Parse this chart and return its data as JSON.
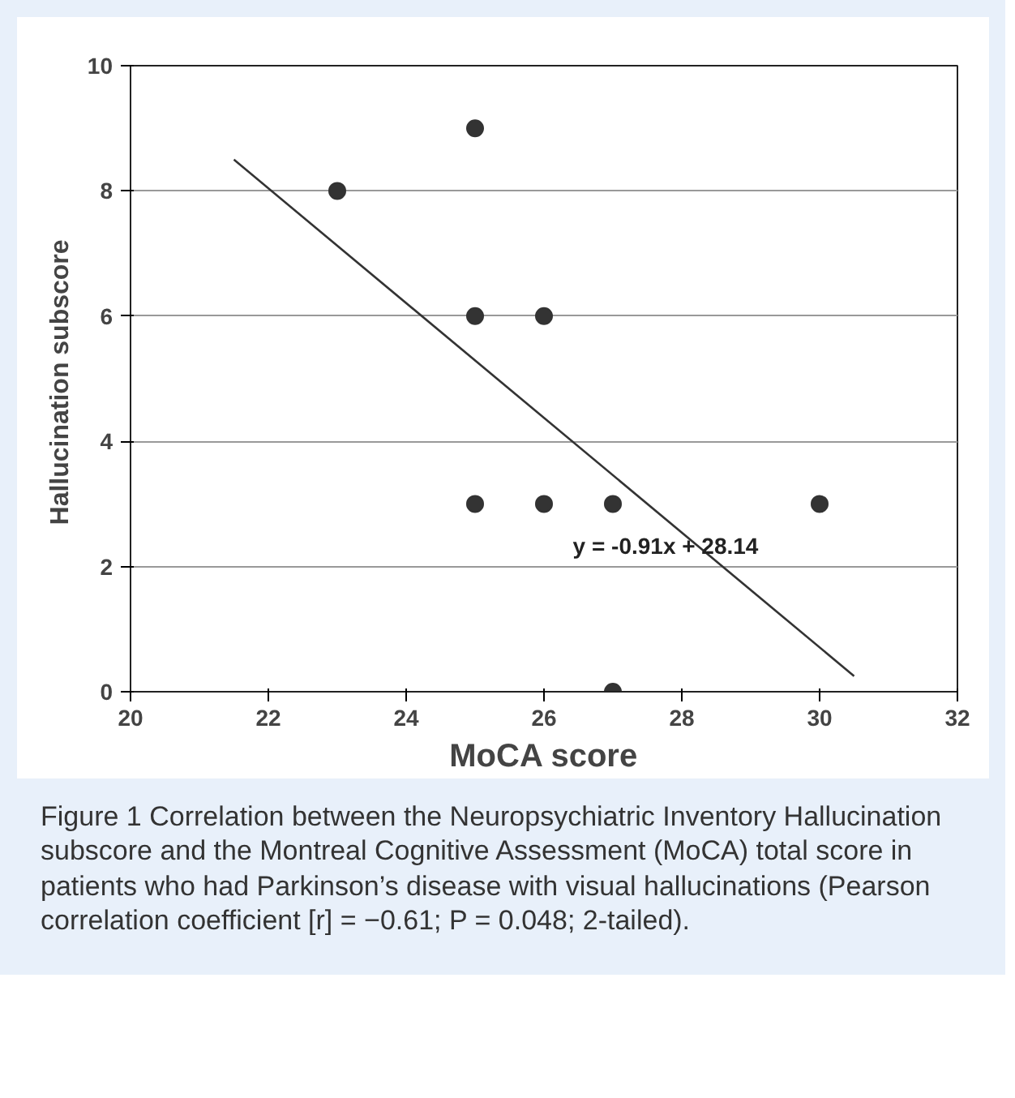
{
  "chart_data": {
    "type": "scatter",
    "xlabel": "MoCA score",
    "ylabel": "Hallucination  subscore",
    "xlim": [
      20,
      32
    ],
    "xticks": [
      20,
      22,
      24,
      26,
      28,
      30,
      32
    ],
    "ylim": [
      0,
      10
    ],
    "yticks": [
      0,
      2,
      4,
      6,
      8,
      10
    ],
    "grid": "y",
    "series": [
      {
        "marker": "circle",
        "color": "#333333",
        "x": [
          23,
          25,
          25,
          26,
          25,
          26,
          27,
          30,
          27
        ],
        "values": [
          8,
          9,
          6,
          6,
          3,
          3,
          3,
          3,
          0
        ]
      },
      {
        "type": "line",
        "color": "#333333",
        "x": [
          21.5,
          30.5
        ],
        "values": [
          8.5,
          0.25
        ]
      }
    ],
    "annotations": [
      "y = -0.91x + 28.14",
      "Figure 1 Correlation between the Neuropsychiatric Inventory Hallucination subscore and the Montreal Cognitive Assessment (MoCA) total score in patients who had Parkinson’s disease with visual hallucinations (Pearson correlation coefficient [r] = −0.61; P = 0.048; 2-tailed)."
    ]
  }
}
